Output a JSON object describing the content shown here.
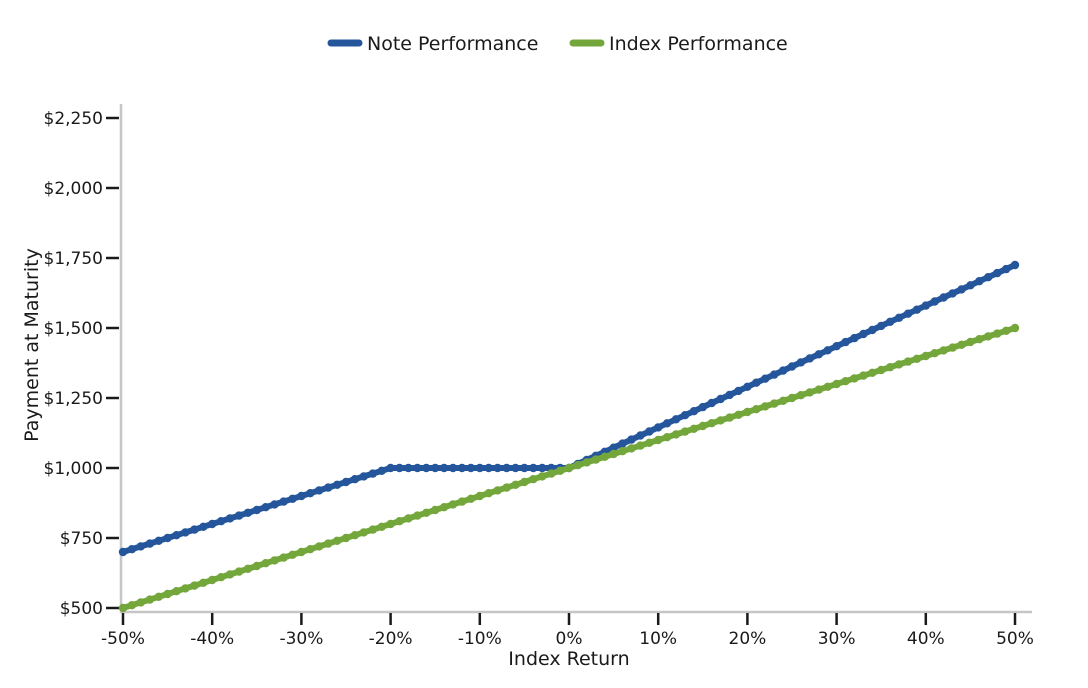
{
  "colors": {
    "note_line": "#25569b",
    "index_line": "#74a73b",
    "axis_spine": "#c6c6c6",
    "text": "#1a1a1a",
    "background": "#ffffff"
  },
  "legend": {
    "items": [
      {
        "label": "Note Performance",
        "color": "#25569b"
      },
      {
        "label": "Index Performance",
        "color": "#74a73b"
      }
    ]
  },
  "chart_data": {
    "type": "line",
    "title": "",
    "xlabel": "Index Return",
    "ylabel": "Payment at Maturity",
    "xlim": [
      -50,
      50
    ],
    "ylim": [
      500,
      2250
    ],
    "grid": false,
    "legend_position": "top-center",
    "marker_step_x_pct": 1,
    "x_ticks": [
      {
        "v": -50,
        "label": "-50%"
      },
      {
        "v": -40,
        "label": "-40%"
      },
      {
        "v": -30,
        "label": "-30%"
      },
      {
        "v": -20,
        "label": "-20%"
      },
      {
        "v": -10,
        "label": "-10%"
      },
      {
        "v": 0,
        "label": "0%"
      },
      {
        "v": 10,
        "label": "10%"
      },
      {
        "v": 20,
        "label": "20%"
      },
      {
        "v": 30,
        "label": "30%"
      },
      {
        "v": 40,
        "label": "40%"
      },
      {
        "v": 50,
        "label": "50%"
      }
    ],
    "y_ticks": [
      {
        "v": 500,
        "label": "$500"
      },
      {
        "v": 750,
        "label": "$750"
      },
      {
        "v": 1000,
        "label": "$1,000"
      },
      {
        "v": 1250,
        "label": "$1,250"
      },
      {
        "v": 1500,
        "label": "$1,500"
      },
      {
        "v": 1750,
        "label": "$1,750"
      },
      {
        "v": 2000,
        "label": "$2,000"
      },
      {
        "v": 2250,
        "label": "$2,250"
      }
    ],
    "series": [
      {
        "name": "Note Performance",
        "color": "#25569b",
        "keypoints": [
          [
            -50,
            700
          ],
          [
            -20,
            1000
          ],
          [
            0,
            1000
          ],
          [
            50,
            1725
          ]
        ]
      },
      {
        "name": "Index Performance",
        "color": "#74a73b",
        "keypoints": [
          [
            -50,
            500
          ],
          [
            50,
            1500
          ]
        ]
      }
    ]
  }
}
